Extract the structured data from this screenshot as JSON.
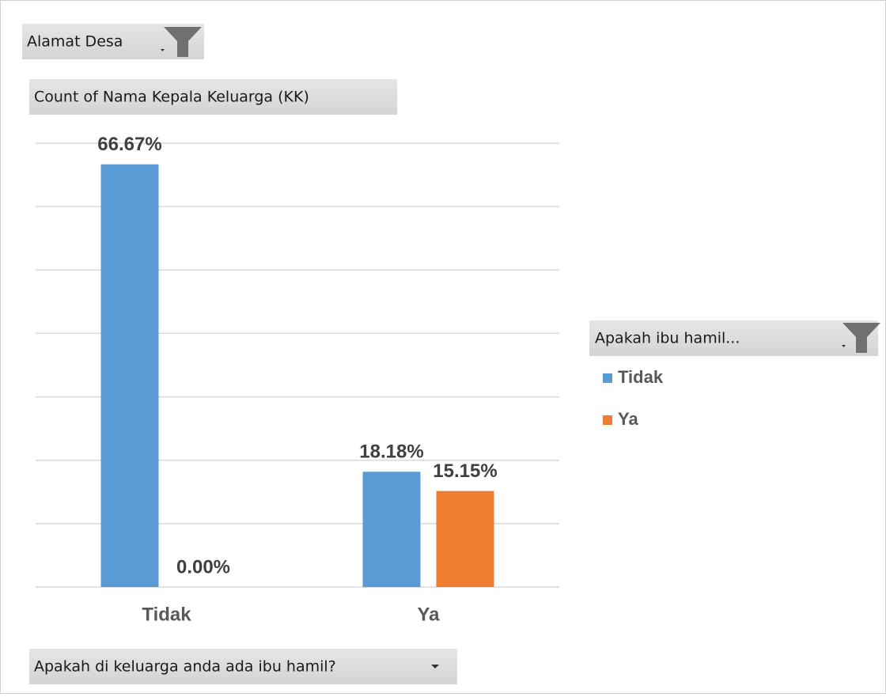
{
  "chart_data": {
    "type": "bar",
    "filter_button": "Alamat Desa",
    "value_button": "Count of Nama Kepala Keluarga (KK)",
    "legend_title": "Apakah ibu hamil...",
    "axis_button": "Apakah di keluarga anda ada ibu hamil?",
    "categories": [
      "Tidak",
      "Ya"
    ],
    "series": [
      {
        "name": "Tidak",
        "color": "#5b9bd5",
        "values": [
          66.67,
          18.18
        ],
        "value_labels": [
          "66.67%",
          "18.18%"
        ]
      },
      {
        "name": "Ya",
        "color": "#ed7d31",
        "values": [
          0,
          15.15
        ],
        "value_labels": [
          "0.00%",
          "15.15%"
        ]
      }
    ],
    "ylim": [
      0,
      70
    ],
    "yticks": [
      0,
      10,
      20,
      30,
      40,
      50,
      60,
      70
    ],
    "grid": true
  }
}
